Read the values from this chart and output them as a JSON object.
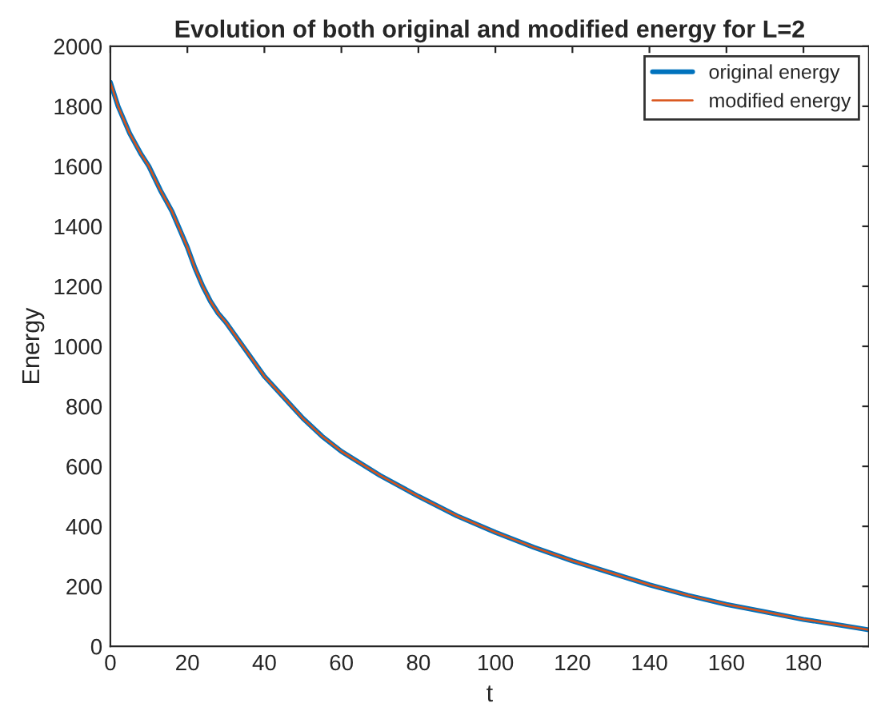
{
  "chart_data": {
    "type": "line",
    "title": "Evolution of both original and modified energy for L=2",
    "xlabel": "t",
    "ylabel": "Energy",
    "x": [
      0,
      2,
      5,
      8,
      10,
      13,
      16,
      18,
      20,
      22,
      24,
      26,
      28,
      30,
      35,
      40,
      45,
      50,
      55,
      60,
      70,
      80,
      90,
      100,
      110,
      120,
      130,
      140,
      150,
      160,
      170,
      180,
      190,
      197
    ],
    "series": [
      {
        "name": "original energy",
        "color": "#0072bd",
        "values": [
          1880,
          1800,
          1710,
          1640,
          1600,
          1520,
          1450,
          1390,
          1330,
          1260,
          1200,
          1150,
          1110,
          1080,
          990,
          900,
          830,
          760,
          700,
          650,
          570,
          500,
          435,
          380,
          330,
          285,
          245,
          205,
          170,
          140,
          115,
          90,
          70,
          55
        ]
      },
      {
        "name": "modified energy",
        "color": "#d95319",
        "values": [
          1880,
          1800,
          1710,
          1640,
          1600,
          1520,
          1450,
          1390,
          1330,
          1260,
          1200,
          1150,
          1110,
          1080,
          990,
          900,
          830,
          760,
          700,
          650,
          570,
          500,
          435,
          380,
          330,
          285,
          245,
          205,
          170,
          140,
          115,
          90,
          70,
          55
        ]
      }
    ],
    "xlim": [
      0,
      197
    ],
    "ylim": [
      0,
      2000
    ],
    "xticks": [
      0,
      20,
      40,
      60,
      80,
      100,
      120,
      140,
      160,
      180
    ],
    "yticks": [
      0,
      200,
      400,
      600,
      800,
      1000,
      1200,
      1400,
      1600,
      1800,
      2000
    ],
    "grid": false,
    "legend": "top right"
  }
}
